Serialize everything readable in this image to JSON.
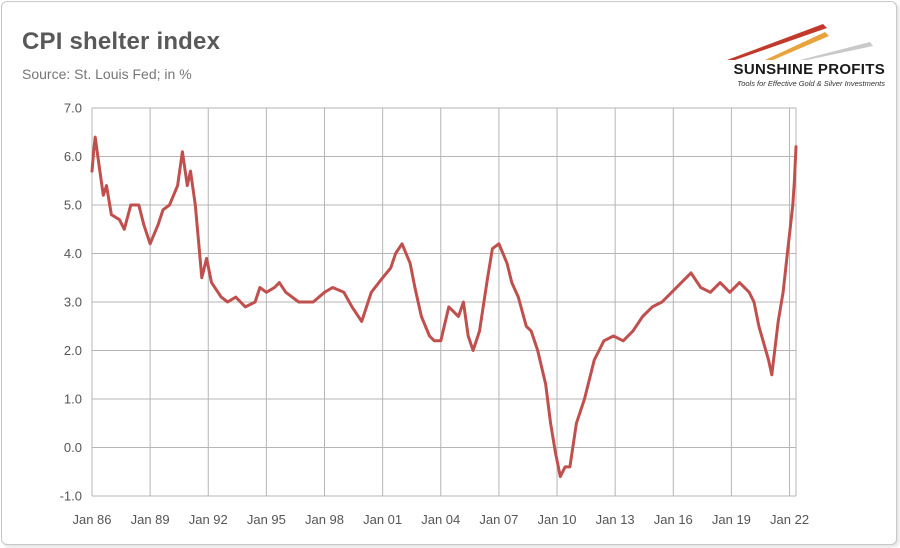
{
  "header": {
    "title": "CPI shelter index",
    "subtitle": "Source: St. Louis Fed; in %"
  },
  "logo": {
    "name": "SUNSHINE PROFITS",
    "tagline": "Tools for Effective Gold & Silver Investments",
    "colors": [
      "#c0392b",
      "#e8a33d",
      "#c9c9c9"
    ]
  },
  "chart_data": {
    "type": "line",
    "title": "CPI shelter index",
    "xlabel": "",
    "ylabel": "",
    "ylim": [
      -1.0,
      7.0
    ],
    "xlim": [
      "1986-01",
      "2022-05"
    ],
    "grid": true,
    "line_color": "#c0504d",
    "y_ticks": [
      "-1.0",
      "0.0",
      "1.0",
      "2.0",
      "3.0",
      "4.0",
      "5.0",
      "6.0",
      "7.0"
    ],
    "x_ticks": [
      "Jan 86",
      "Jan 89",
      "Jan 92",
      "Jan 95",
      "Jan 98",
      "Jan 01",
      "Jan 04",
      "Jan 07",
      "Jan 10",
      "Jan 13",
      "Jan 16",
      "Jan 19",
      "Jan 22"
    ],
    "series": [
      {
        "points": [
          [
            "1986-01",
            5.7
          ],
          [
            "1986-02",
            6.1
          ],
          [
            "1986-03",
            6.4
          ],
          [
            "1986-05",
            5.9
          ],
          [
            "1986-08",
            5.2
          ],
          [
            "1986-10",
            5.4
          ],
          [
            "1987-01",
            4.8
          ],
          [
            "1987-06",
            4.7
          ],
          [
            "1987-09",
            4.5
          ],
          [
            "1988-01",
            5.0
          ],
          [
            "1988-06",
            5.0
          ],
          [
            "1988-09",
            4.6
          ],
          [
            "1989-01",
            4.2
          ],
          [
            "1989-06",
            4.6
          ],
          [
            "1989-09",
            4.9
          ],
          [
            "1990-01",
            5.0
          ],
          [
            "1990-06",
            5.4
          ],
          [
            "1990-09",
            6.1
          ],
          [
            "1990-12",
            5.4
          ],
          [
            "1991-02",
            5.7
          ],
          [
            "1991-05",
            5.0
          ],
          [
            "1991-09",
            3.5
          ],
          [
            "1991-12",
            3.9
          ],
          [
            "1992-03",
            3.4
          ],
          [
            "1992-09",
            3.1
          ],
          [
            "1993-01",
            3.0
          ],
          [
            "1993-06",
            3.1
          ],
          [
            "1993-12",
            2.9
          ],
          [
            "1994-06",
            3.0
          ],
          [
            "1994-09",
            3.3
          ],
          [
            "1995-01",
            3.2
          ],
          [
            "1995-06",
            3.3
          ],
          [
            "1995-09",
            3.4
          ],
          [
            "1996-01",
            3.2
          ],
          [
            "1996-09",
            3.0
          ],
          [
            "1997-06",
            3.0
          ],
          [
            "1998-01",
            3.2
          ],
          [
            "1998-06",
            3.3
          ],
          [
            "1999-01",
            3.2
          ],
          [
            "1999-06",
            2.9
          ],
          [
            "1999-12",
            2.6
          ],
          [
            "2000-06",
            3.2
          ],
          [
            "2001-01",
            3.5
          ],
          [
            "2001-06",
            3.7
          ],
          [
            "2001-09",
            4.0
          ],
          [
            "2002-01",
            4.2
          ],
          [
            "2002-06",
            3.8
          ],
          [
            "2002-09",
            3.3
          ],
          [
            "2003-01",
            2.7
          ],
          [
            "2003-06",
            2.3
          ],
          [
            "2003-09",
            2.2
          ],
          [
            "2004-01",
            2.2
          ],
          [
            "2004-06",
            2.9
          ],
          [
            "2004-12",
            2.7
          ],
          [
            "2005-03",
            3.0
          ],
          [
            "2005-06",
            2.3
          ],
          [
            "2005-09",
            2.0
          ],
          [
            "2006-01",
            2.4
          ],
          [
            "2006-06",
            3.5
          ],
          [
            "2006-09",
            4.1
          ],
          [
            "2007-01",
            4.2
          ],
          [
            "2007-06",
            3.8
          ],
          [
            "2007-09",
            3.4
          ],
          [
            "2008-01",
            3.1
          ],
          [
            "2008-06",
            2.5
          ],
          [
            "2008-09",
            2.4
          ],
          [
            "2009-01",
            2.0
          ],
          [
            "2009-06",
            1.3
          ],
          [
            "2009-09",
            0.5
          ],
          [
            "2009-12",
            -0.1
          ],
          [
            "2010-03",
            -0.6
          ],
          [
            "2010-06",
            -0.4
          ],
          [
            "2010-09",
            -0.4
          ],
          [
            "2011-01",
            0.5
          ],
          [
            "2011-06",
            1.0
          ],
          [
            "2011-12",
            1.8
          ],
          [
            "2012-06",
            2.2
          ],
          [
            "2012-12",
            2.3
          ],
          [
            "2013-06",
            2.2
          ],
          [
            "2013-12",
            2.4
          ],
          [
            "2014-06",
            2.7
          ],
          [
            "2014-12",
            2.9
          ],
          [
            "2015-06",
            3.0
          ],
          [
            "2015-12",
            3.2
          ],
          [
            "2016-06",
            3.4
          ],
          [
            "2016-12",
            3.6
          ],
          [
            "2017-06",
            3.3
          ],
          [
            "2017-12",
            3.2
          ],
          [
            "2018-06",
            3.4
          ],
          [
            "2018-12",
            3.2
          ],
          [
            "2019-06",
            3.4
          ],
          [
            "2019-12",
            3.2
          ],
          [
            "2020-03",
            3.0
          ],
          [
            "2020-06",
            2.5
          ],
          [
            "2020-12",
            1.8
          ],
          [
            "2021-02",
            1.5
          ],
          [
            "2021-06",
            2.6
          ],
          [
            "2021-09",
            3.2
          ],
          [
            "2021-12",
            4.1
          ],
          [
            "2022-03",
            5.0
          ],
          [
            "2022-04",
            5.5
          ],
          [
            "2022-05",
            6.2
          ]
        ]
      }
    ]
  }
}
